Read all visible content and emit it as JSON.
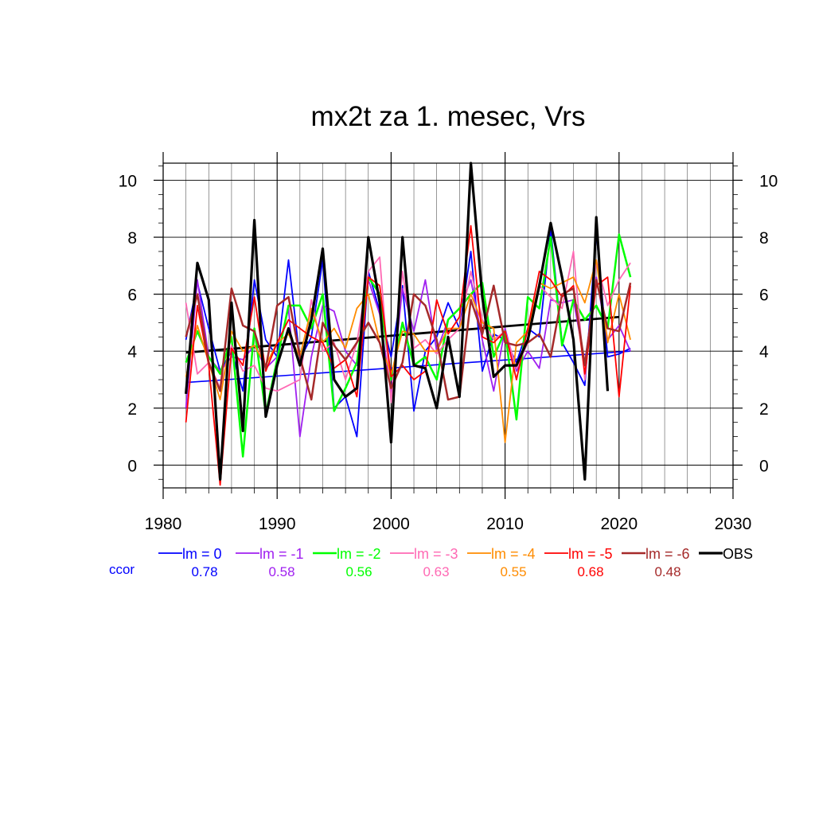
{
  "chart_data": {
    "type": "line",
    "title": "mx2t za 1. mesec, Vrs",
    "xlabel": "",
    "ylabel": "",
    "xlim": [
      1980,
      2030
    ],
    "ylim": [
      -0.8,
      10.6
    ],
    "x_ticks": [
      1980,
      1990,
      2000,
      2010,
      2020,
      2030
    ],
    "y_ticks": [
      0,
      2,
      4,
      6,
      8,
      10
    ],
    "grid": true,
    "legend_position": "bottom",
    "years": [
      1982,
      1983,
      1984,
      1985,
      1986,
      1987,
      1988,
      1989,
      1990,
      1991,
      1992,
      1993,
      1994,
      1995,
      1996,
      1997,
      1998,
      1999,
      2000,
      2001,
      2002,
      2003,
      2004,
      2005,
      2006,
      2007,
      2008,
      2009,
      2010,
      2011,
      2012,
      2013,
      2014,
      2015,
      2016,
      2017,
      2018,
      2019,
      2020,
      2021
    ],
    "series": [
      {
        "name": "lm = 0",
        "color": "#0000ff",
        "width": 1.8,
        "values": [
          4.4,
          6.4,
          4.8,
          3.3,
          4.0,
          2.6,
          6.5,
          4.4,
          3.8,
          7.2,
          3.7,
          4.5,
          7.2,
          2.0,
          2.4,
          1.0,
          6.8,
          5.4,
          3.8,
          6.3,
          1.9,
          4.0,
          4.5,
          5.7,
          4.8,
          7.5,
          3.3,
          4.6,
          4.4,
          3.6,
          4.8,
          4.5,
          8.3,
          4.3,
          3.6,
          2.8,
          8.2,
          3.8,
          3.9,
          4.1
        ]
      },
      {
        "name": "lm = -1",
        "color": "#a020f0",
        "width": 1.8,
        "values": [
          2.0,
          6.5,
          3.8,
          3.3,
          3.8,
          3.7,
          4.2,
          3.4,
          3.8,
          5.5,
          1.0,
          3.8,
          5.6,
          5.4,
          4.0,
          3.5,
          6.5,
          5.3,
          2.5,
          6.2,
          4.7,
          6.5,
          4.0,
          5.1,
          5.5,
          6.5,
          4.4,
          2.6,
          4.8,
          3.3,
          4.0,
          3.4,
          5.8,
          5.7,
          5.8,
          3.6,
          6.6,
          4.4,
          4.9,
          4.0
        ]
      },
      {
        "name": "lm = -2",
        "color": "#00ff00",
        "width": 2.5,
        "values": [
          3.6,
          4.7,
          3.8,
          3.2,
          4.5,
          0.3,
          4.8,
          1.8,
          3.7,
          5.6,
          5.6,
          4.8,
          6.0,
          1.9,
          2.7,
          3.6,
          6.6,
          6.0,
          3.0,
          5.0,
          3.5,
          3.8,
          3.0,
          5.1,
          5.5,
          6.0,
          6.4,
          3.8,
          4.7,
          1.6,
          5.9,
          5.5,
          8.0,
          4.2,
          5.8,
          5.1,
          5.6,
          4.8,
          8.1,
          6.6
        ]
      },
      {
        "name": "lm = -3",
        "color": "#ff69b4",
        "width": 1.8,
        "values": [
          5.7,
          3.2,
          3.6,
          2.7,
          4.2,
          3.3,
          3.5,
          2.7,
          2.6,
          2.8,
          3.0,
          5.8,
          4.0,
          4.3,
          3.0,
          4.3,
          6.8,
          7.3,
          2.2,
          6.8,
          4.1,
          4.4,
          3.9,
          4.4,
          4.8,
          6.8,
          5.1,
          4.4,
          4.7,
          3.4,
          4.3,
          6.3,
          5.9,
          5.5,
          7.5,
          3.0,
          7.2,
          5.6,
          6.5,
          7.1
        ]
      },
      {
        "name": "lm = -4",
        "color": "#ff8c00",
        "width": 1.8,
        "values": [
          3.1,
          4.9,
          3.6,
          2.3,
          4.7,
          4.0,
          4.2,
          3.5,
          4.3,
          4.6,
          3.8,
          5.5,
          4.3,
          4.8,
          4.1,
          5.5,
          6.0,
          4.3,
          3.2,
          4.7,
          4.6,
          4.0,
          4.0,
          4.8,
          4.8,
          6.0,
          5.0,
          4.8,
          0.8,
          4.3,
          4.7,
          6.4,
          6.2,
          6.4,
          6.6,
          5.7,
          7.2,
          4.3,
          6.0,
          4.4
        ]
      },
      {
        "name": "lm = -5",
        "color": "#ff0000",
        "width": 1.8,
        "values": [
          1.5,
          5.6,
          3.5,
          -0.7,
          4.1,
          3.5,
          5.9,
          3.3,
          4.3,
          5.1,
          4.8,
          4.5,
          4.3,
          3.4,
          3.7,
          2.4,
          6.6,
          6.3,
          3.1,
          3.5,
          3.0,
          3.3,
          5.8,
          4.6,
          5.2,
          8.4,
          4.5,
          4.3,
          4.7,
          3.0,
          4.8,
          6.8,
          6.5,
          5.9,
          6.3,
          3.2,
          6.3,
          6.6,
          2.4,
          6.3
        ]
      },
      {
        "name": "lm = -6",
        "color": "#a52a2a",
        "width": 2.5,
        "values": [
          4.5,
          6.0,
          3.6,
          2.6,
          6.2,
          4.9,
          4.7,
          3.4,
          5.6,
          5.9,
          3.8,
          2.3,
          5.0,
          4.2,
          3.7,
          4.3,
          5.0,
          4.3,
          2.7,
          3.6,
          6.0,
          5.6,
          4.4,
          2.3,
          2.4,
          5.8,
          4.6,
          6.3,
          4.3,
          4.2,
          4.3,
          4.6,
          3.8,
          6.0,
          6.2,
          3.5,
          6.5,
          4.8,
          4.7,
          6.4
        ]
      },
      {
        "name": "OBS",
        "color": "#000000",
        "width": 3.2,
        "values": [
          2.5,
          7.1,
          5.8,
          -0.5,
          5.7,
          1.2,
          8.6,
          1.7,
          3.5,
          4.8,
          3.5,
          5.1,
          7.6,
          3.0,
          2.4,
          2.7,
          8.0,
          5.7,
          0.8,
          8.0,
          3.5,
          3.4,
          2.0,
          4.5,
          2.4,
          10.6,
          5.9,
          3.1,
          3.5,
          3.5,
          4.4,
          6.3,
          8.5,
          6.6,
          4.4,
          -0.5,
          8.7,
          2.6,
          null,
          null
        ]
      }
    ],
    "trend_lines": [
      {
        "color": "#0000ff",
        "width": 1.6,
        "x": [
          1982,
          2021
        ],
        "y": [
          2.9,
          4.0
        ]
      },
      {
        "color": "#000000",
        "width": 2.8,
        "x": [
          1982,
          2020
        ],
        "y": [
          3.95,
          5.2
        ]
      }
    ],
    "ccor_label": "ccor",
    "ccor": [
      {
        "value": "0.78",
        "color": "#0000ff"
      },
      {
        "value": "0.58",
        "color": "#a020f0"
      },
      {
        "value": "0.56",
        "color": "#00ff00"
      },
      {
        "value": "0.63",
        "color": "#ff69b4"
      },
      {
        "value": "0.55",
        "color": "#ff8c00"
      },
      {
        "value": "0.68",
        "color": "#ff0000"
      },
      {
        "value": "0.48",
        "color": "#a52a2a"
      }
    ]
  }
}
